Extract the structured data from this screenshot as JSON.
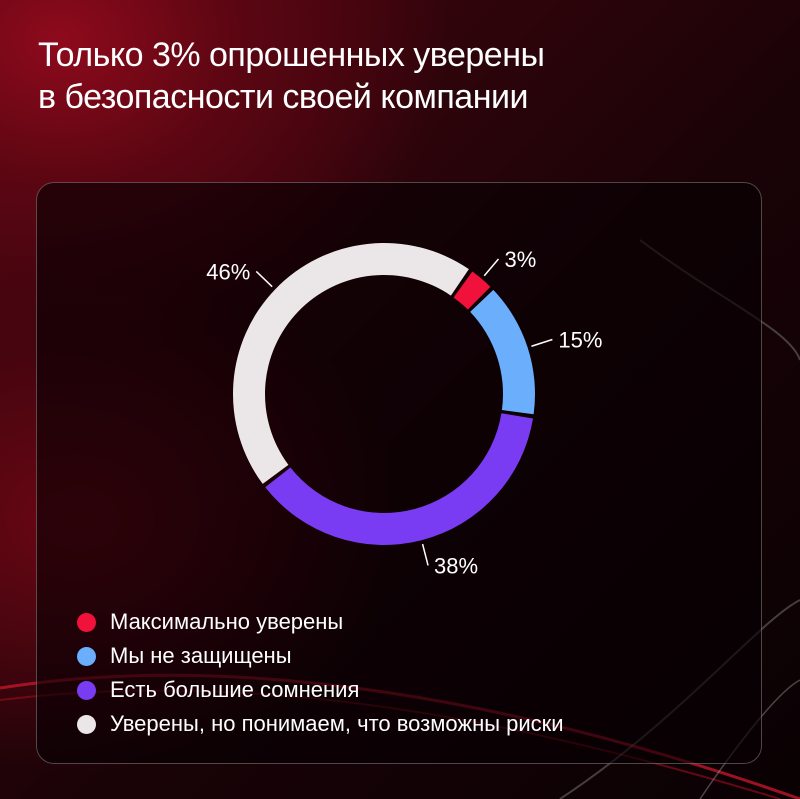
{
  "title": {
    "line1": "Только 3% опрошенных уверены",
    "line2": "в безопасности своей компании"
  },
  "chart_data": {
    "type": "pie",
    "title": "Только 3% опрошенных уверены в безопасности своей компании",
    "labels": [
      "Максимально уверены",
      "Мы не защищены",
      "Есть большие сомнения",
      "Уверены, но понимаем, что возможны риски"
    ],
    "values": [
      3,
      15,
      38,
      46
    ],
    "value_labels": [
      "3%",
      "15%",
      "38%",
      "46%"
    ],
    "colors": [
      "#f0123a",
      "#6aaefc",
      "#7a3cf2",
      "#ebe7e8"
    ],
    "legend_placement": "bottom-left"
  }
}
